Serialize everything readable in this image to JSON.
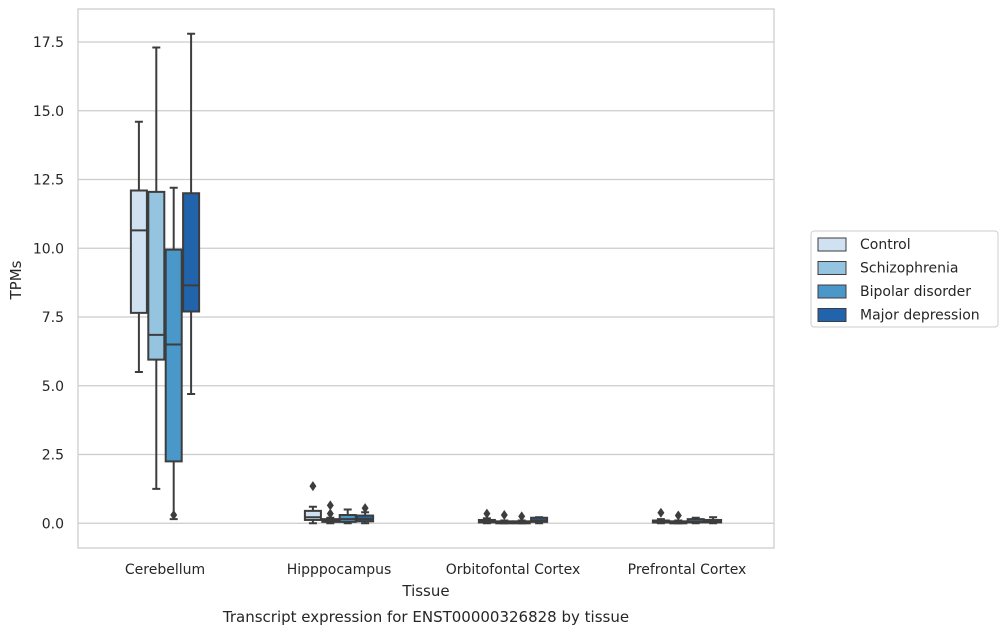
{
  "chart_data": {
    "type": "box",
    "xlabel": "Tissue",
    "ylabel": "TPMs",
    "caption": "Transcript expression for ENST00000326828 by tissue",
    "ylim": [
      -0.9,
      18.7
    ],
    "yticks": [
      "0.0",
      "2.5",
      "5.0",
      "7.5",
      "10.0",
      "12.5",
      "15.0",
      "17.5"
    ],
    "grid": true,
    "legend_position": "right",
    "categories": [
      "Cerebellum",
      "Hipppocampus",
      "Orbitofontal Cortex",
      "Prefrontal Cortex"
    ],
    "series": [
      {
        "name": "Control",
        "color": "#d0e1f2",
        "boxes": [
          {
            "whislo": 5.5,
            "q1": 7.65,
            "med": 10.65,
            "q3": 12.1,
            "whishi": 14.6,
            "fliers": []
          },
          {
            "whislo": 0.0,
            "q1": 0.12,
            "med": 0.22,
            "q3": 0.45,
            "whishi": 0.6,
            "fliers": [
              1.35
            ]
          },
          {
            "whislo": 0.0,
            "q1": 0.03,
            "med": 0.07,
            "q3": 0.12,
            "whishi": 0.18,
            "fliers": [
              0.35
            ]
          },
          {
            "whislo": 0.0,
            "q1": 0.03,
            "med": 0.06,
            "q3": 0.1,
            "whishi": 0.15,
            "fliers": [
              0.38
            ]
          }
        ]
      },
      {
        "name": "Schizophrenia",
        "color": "#94c4df",
        "boxes": [
          {
            "whislo": 1.25,
            "q1": 5.95,
            "med": 6.85,
            "q3": 12.05,
            "whishi": 17.3,
            "fliers": []
          },
          {
            "whislo": 0.0,
            "q1": 0.05,
            "med": 0.1,
            "q3": 0.15,
            "whishi": 0.2,
            "fliers": [
              0.35,
              0.65
            ]
          },
          {
            "whislo": 0.0,
            "q1": 0.02,
            "med": 0.04,
            "q3": 0.07,
            "whishi": 0.1,
            "fliers": [
              0.3
            ]
          },
          {
            "whislo": 0.0,
            "q1": 0.02,
            "med": 0.04,
            "q3": 0.07,
            "whishi": 0.1,
            "fliers": [
              0.28
            ]
          }
        ]
      },
      {
        "name": "Bipolar disorder",
        "color": "#4a98c9",
        "boxes": [
          {
            "whislo": 0.15,
            "q1": 2.25,
            "med": 6.5,
            "q3": 9.95,
            "whishi": 12.2,
            "fliers": [
              0.3
            ]
          },
          {
            "whislo": 0.0,
            "q1": 0.05,
            "med": 0.15,
            "q3": 0.3,
            "whishi": 0.5,
            "fliers": []
          },
          {
            "whislo": 0.0,
            "q1": 0.02,
            "med": 0.04,
            "q3": 0.07,
            "whishi": 0.1,
            "fliers": [
              0.25
            ]
          },
          {
            "whislo": 0.0,
            "q1": 0.03,
            "med": 0.07,
            "q3": 0.15,
            "whishi": 0.2,
            "fliers": []
          }
        ]
      },
      {
        "name": "Major depression",
        "color": "#2164ab",
        "boxes": [
          {
            "whislo": 4.7,
            "q1": 7.7,
            "med": 8.65,
            "q3": 12.0,
            "whishi": 17.8,
            "fliers": []
          },
          {
            "whislo": 0.0,
            "q1": 0.07,
            "med": 0.15,
            "q3": 0.28,
            "whishi": 0.4,
            "fliers": [
              0.55
            ]
          },
          {
            "whislo": 0.0,
            "q1": 0.05,
            "med": 0.1,
            "q3": 0.2,
            "whishi": 0.22,
            "fliers": []
          },
          {
            "whislo": 0.0,
            "q1": 0.03,
            "med": 0.06,
            "q3": 0.12,
            "whishi": 0.22,
            "fliers": []
          }
        ]
      }
    ]
  }
}
